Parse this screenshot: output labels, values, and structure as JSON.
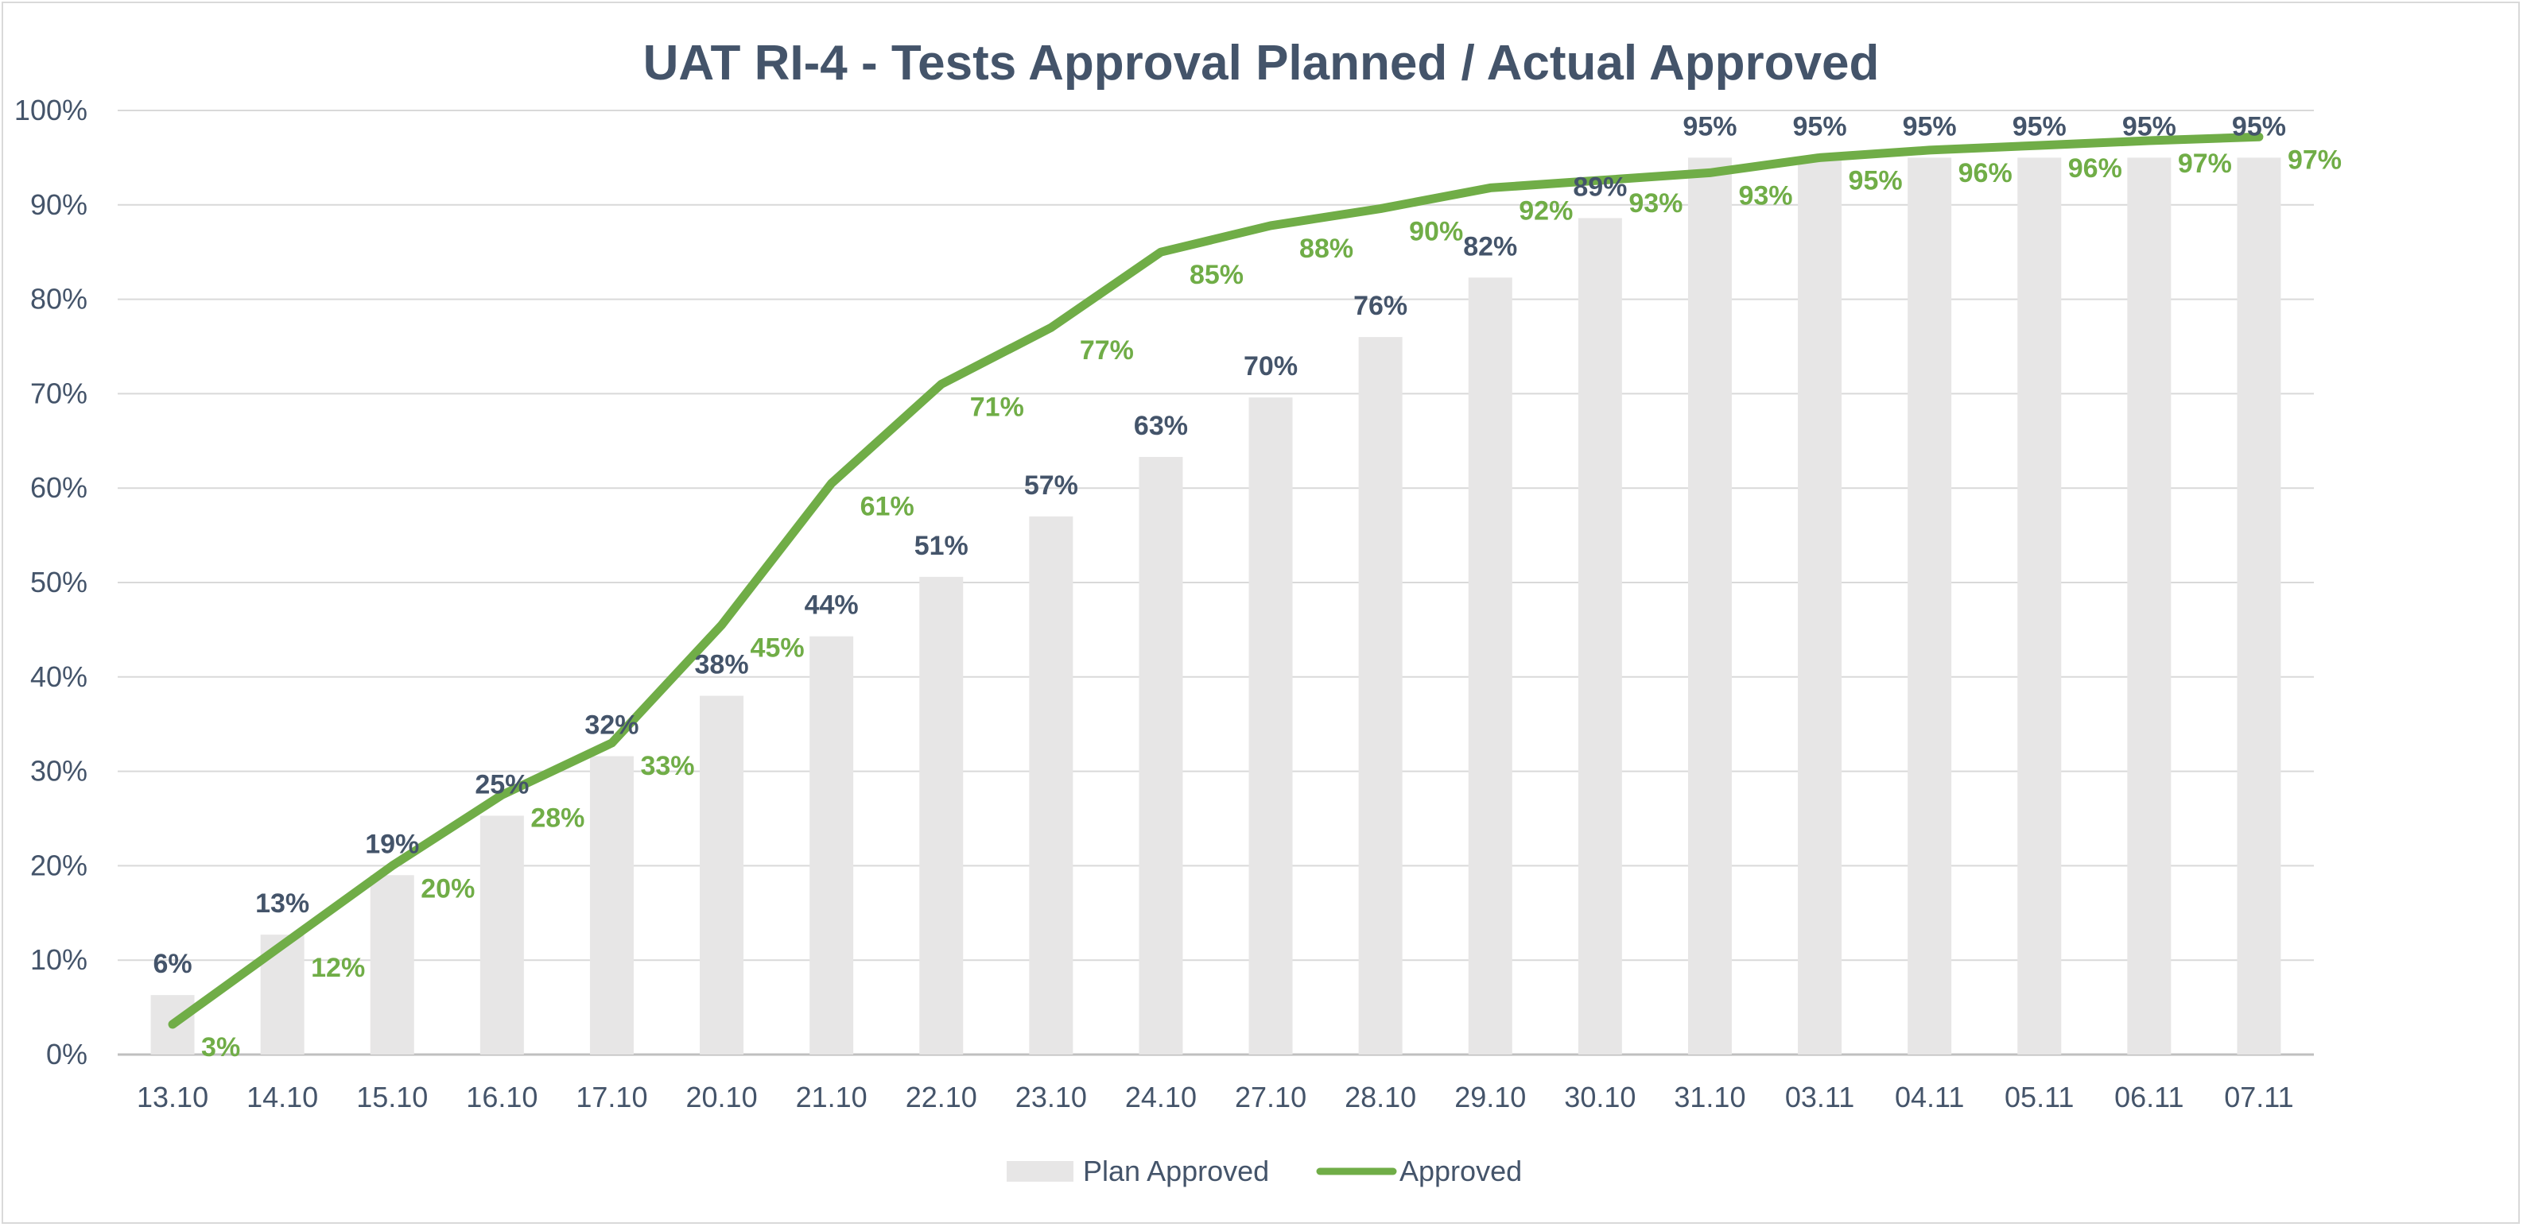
{
  "chart_data": {
    "type": "bar",
    "title": "UAT RI-4 - Tests Approval Planned / Actual Approved",
    "xlabel": "",
    "ylabel": "",
    "ylim": [
      0,
      100
    ],
    "y_ticks": [
      "0%",
      "10%",
      "20%",
      "30%",
      "40%",
      "50%",
      "60%",
      "70%",
      "80%",
      "90%",
      "100%"
    ],
    "grid": true,
    "legend_position": "bottom",
    "categories": [
      "13.10",
      "14.10",
      "15.10",
      "16.10",
      "17.10",
      "20.10",
      "21.10",
      "22.10",
      "23.10",
      "24.10",
      "27.10",
      "28.10",
      "29.10",
      "30.10",
      "31.10",
      "03.11",
      "04.11",
      "05.11",
      "06.11",
      "07.11"
    ],
    "series": [
      {
        "name": "Plan Approved",
        "type": "bar",
        "color": "#e7e6e6",
        "label_color": "#44546a",
        "values": [
          6.3,
          12.7,
          19,
          25.3,
          31.6,
          38,
          44.3,
          50.6,
          57,
          63.3,
          69.6,
          76,
          82.3,
          88.6,
          95,
          95,
          95,
          95,
          95,
          95
        ],
        "labels": [
          "6%",
          "13%",
          "19%",
          "25%",
          "32%",
          "38%",
          "44%",
          "51%",
          "57%",
          "63%",
          "70%",
          "76%",
          "82%",
          "89%",
          "95%",
          "95%",
          "95%",
          "95%",
          "95%",
          "95%"
        ]
      },
      {
        "name": "Approved",
        "type": "line",
        "color": "#70ad47",
        "label_color": "#70ad47",
        "values": [
          3.2,
          11.6,
          20,
          27.5,
          33,
          45.5,
          60.5,
          71,
          77,
          85,
          87.8,
          89.6,
          91.8,
          92.6,
          93.4,
          95,
          95.8,
          96.3,
          96.8,
          97.2
        ],
        "labels": [
          "3%",
          "12%",
          "20%",
          "28%",
          "33%",
          "45%",
          "61%",
          "71%",
          "77%",
          "85%",
          "88%",
          "90%",
          "92%",
          "93%",
          "93%",
          "95%",
          "96%",
          "96%",
          "97%",
          "97%"
        ]
      }
    ]
  }
}
